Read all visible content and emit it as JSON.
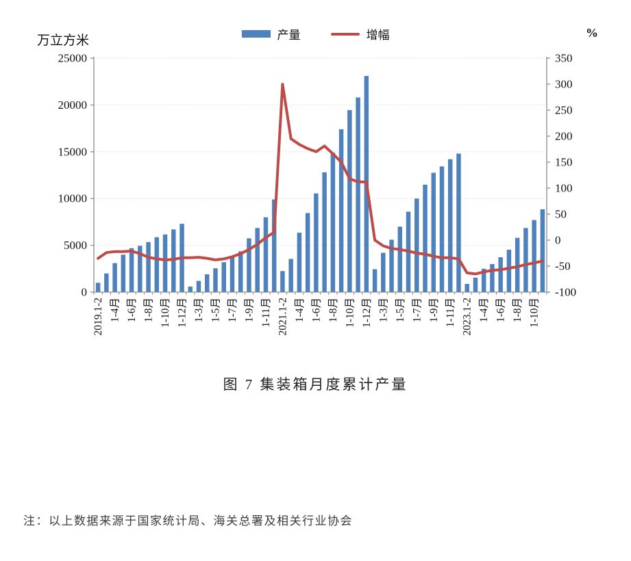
{
  "title": "图 7  集装箱月度累计产量",
  "note": "注：以上数据来源于国家统计局、海关总署及相关行业协会",
  "chart_data": {
    "type": "bar+line",
    "title": "图 7  集装箱月度累计产量",
    "grid": "horizontal-dotted",
    "legend_position": "top-center",
    "categories": [
      "2019.1-2",
      "1-3月",
      "1-4月",
      "1-5月",
      "1-6月",
      "1-7月",
      "1-8月",
      "1-9月",
      "1-10月",
      "1-11月",
      "1-12月",
      "1-2月",
      "1-3月",
      "1-4月",
      "1-5月",
      "1-6月",
      "1-7月",
      "1-8月",
      "1-9月",
      "1-10月",
      "1-11月",
      "1-12月",
      "2021.1-2",
      "1-3月",
      "1-4月",
      "1-5月",
      "1-6月",
      "1-7月",
      "1-8月",
      "1-9月",
      "1-10月",
      "1-11月",
      "1-12月",
      "1-2月",
      "1-3月",
      "1-4月",
      "1-5月",
      "1-6月",
      "1-7月",
      "1-8月",
      "1-9月",
      "1-10月",
      "1-11月",
      "1-12月",
      "2023.1-2",
      "1-3月",
      "1-4月",
      "1-5月",
      "1-6月",
      "1-7月",
      "1-8月",
      "1-9月",
      "1-10月",
      "1-11月"
    ],
    "x_labels_shown_every": 2,
    "visible_x_tick_labels": [
      "2019.1-2",
      "1-4月",
      "1-6月",
      "1-8月",
      "1-10月",
      "1-12月",
      "1-3月",
      "1-5月",
      "1-7月",
      "1-9月",
      "1-11月",
      "2021.1-2",
      "1-4月",
      "1-6月",
      "1-8月",
      "1-10月",
      "1-12月",
      "1-3月",
      "1-5月",
      "1-7月",
      "1-9月",
      "1-11月",
      "2023.1-2",
      "1-4月",
      "1-6月",
      "1-8月",
      "1-10月"
    ],
    "series": [
      {
        "name": "产量",
        "type": "bar",
        "axis": "left",
        "color": "#4F81BD",
        "values": [
          1000,
          2000,
          3100,
          4000,
          4700,
          4950,
          5350,
          5870,
          6160,
          6700,
          7300,
          600,
          1200,
          1900,
          2550,
          3200,
          3800,
          4360,
          5750,
          6850,
          8000,
          9900,
          2250,
          3550,
          6350,
          8450,
          10550,
          12800,
          14900,
          17400,
          19450,
          20800,
          23100,
          2450,
          4200,
          5600,
          7000,
          8600,
          10000,
          11480,
          12750,
          13430,
          14200,
          14800,
          880,
          1550,
          2500,
          3000,
          3730,
          4530,
          5800,
          6850,
          7700,
          8850
        ]
      },
      {
        "name": "增幅",
        "type": "line",
        "axis": "right",
        "color": "#BE4B48",
        "values": [
          -35,
          -24,
          -22,
          -22,
          -21,
          -26,
          -33,
          -36,
          -38,
          -37,
          -34,
          -34,
          -33,
          -35,
          -38,
          -36,
          -32,
          -26,
          -18,
          -8,
          5,
          15,
          300,
          195,
          184,
          176,
          170,
          181,
          166,
          150,
          118,
          112,
          112,
          0,
          -11,
          -16,
          -18,
          -21,
          -25,
          -27,
          -31,
          -34,
          -34,
          -36,
          -63,
          -65,
          -61,
          -58,
          -57,
          -54,
          -51,
          -47,
          -44,
          -40
        ]
      }
    ],
    "left_axis": {
      "title": "万立方米",
      "min": 0,
      "max": 25000,
      "step": 5000,
      "tick_labels": [
        "0",
        "5000",
        "10000",
        "15000",
        "20000",
        "25000"
      ]
    },
    "right_axis": {
      "title": "%",
      "min": -100,
      "max": 350,
      "step": 50,
      "tick_labels": [
        "-100",
        "-50",
        "0",
        "50",
        "100",
        "150",
        "200",
        "250",
        "300",
        "350"
      ]
    }
  }
}
